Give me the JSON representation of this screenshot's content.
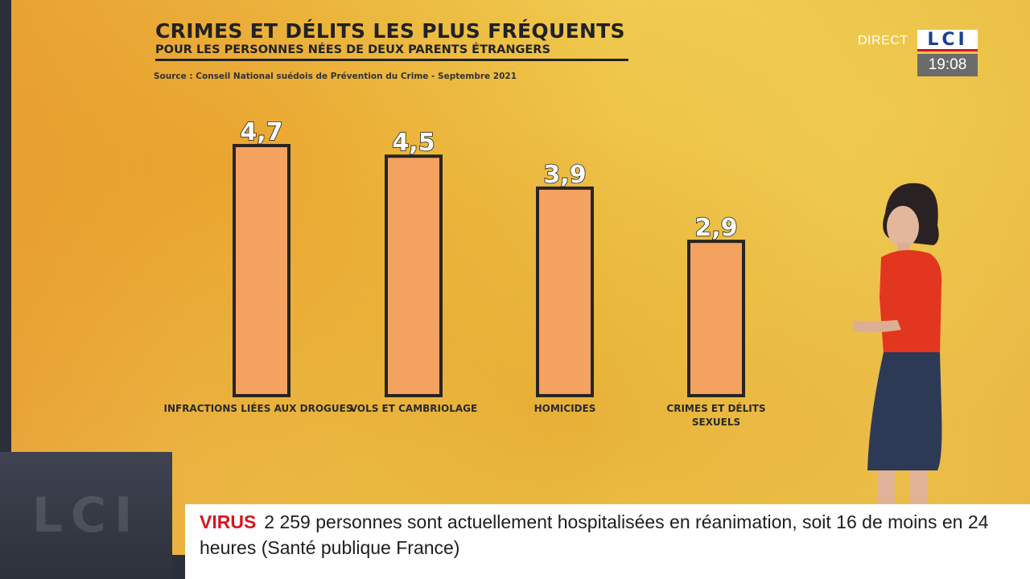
{
  "chart_data": {
    "type": "bar",
    "title": "CRIMES ET DÉLITS LES PLUS FRÉQUENTS",
    "subtitle": "POUR LES PERSONNES NÉES DE DEUX PARENTS ÉTRANGERS",
    "source": "Source : Conseil National suédois de Prévention du Crime - Septembre 2021",
    "categories": [
      [
        "INFRACTIONS LIÉES AUX DROGUES"
      ],
      [
        "VOLS ET CAMBRIOLAGE"
      ],
      [
        "HOMICIDES"
      ],
      [
        "CRIMES ET DÉLITS",
        "SEXUELS"
      ]
    ],
    "values": [
      4.7,
      4.5,
      3.9,
      2.9
    ],
    "value_labels": [
      "4,7",
      "4,5",
      "3,9",
      "2,9"
    ],
    "ylim": [
      0,
      4.7
    ],
    "grid": false,
    "colors": {
      "bar": "#f3a25f",
      "outline": "#2a2420"
    }
  },
  "broadcast": {
    "direct_label": "DIRECT",
    "channel_logo": "LCI",
    "time": "19:08"
  },
  "ticker": {
    "label": "VIRUS",
    "text": "2 259 personnes sont actuellement hospitalisées en réanimation, soit 16 de moins en 24 heures (Santé publique France)"
  },
  "colors": {
    "ticker_label": "#d4171d",
    "logo_blue": "#1c3f93",
    "logo_red": "#d9111b"
  }
}
